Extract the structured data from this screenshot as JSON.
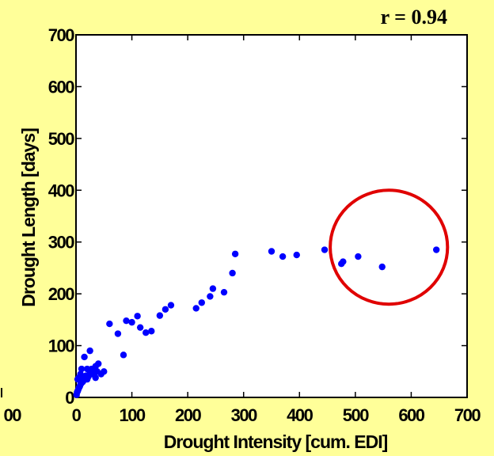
{
  "chart_data": {
    "type": "scatter",
    "title": "",
    "annotation": "r = 0.94",
    "xlabel": "Drought Intensity [cum. EDI]",
    "ylabel": "Drought Length [days]",
    "xlim": [
      0,
      700
    ],
    "ylim": [
      0,
      700
    ],
    "xticks": [
      "0",
      "100",
      "200",
      "300",
      "400",
      "500",
      "600",
      "700"
    ],
    "yticks": [
      "0",
      "100",
      "200",
      "300",
      "400",
      "500",
      "600",
      "700"
    ],
    "left_panel_partial_tick": "00",
    "grid": false,
    "colors": {
      "background": "#FFFF99",
      "plot_area": "#FFFFFF",
      "points": "#0000FF",
      "highlight_circle": "#E00000"
    },
    "highlight_circle": {
      "center": [
        560,
        290
      ],
      "radius_x": 105,
      "radius_y": 110
    },
    "series": [
      {
        "x": [
          1,
          2,
          3,
          4,
          5,
          6,
          7,
          8,
          10,
          12,
          14,
          3,
          5,
          8,
          15,
          18,
          20,
          22,
          25,
          28,
          30,
          32,
          35,
          38,
          40,
          30,
          20,
          10,
          35,
          45,
          50,
          25,
          15,
          60,
          75,
          85,
          90,
          100,
          110,
          115,
          125,
          135,
          150,
          160,
          170,
          215,
          225,
          240,
          245,
          265,
          280,
          285,
          350,
          370,
          395,
          445,
          475,
          478,
          505,
          548,
          645
        ],
        "y": [
          5,
          10,
          12,
          15,
          18,
          20,
          22,
          25,
          28,
          30,
          33,
          35,
          38,
          45,
          40,
          42,
          55,
          40,
          48,
          55,
          45,
          48,
          60,
          50,
          65,
          45,
          35,
          55,
          38,
          45,
          50,
          90,
          78,
          142,
          123,
          82,
          148,
          145,
          157,
          135,
          125,
          128,
          158,
          170,
          178,
          172,
          183,
          195,
          210,
          203,
          240,
          277,
          282,
          272,
          275,
          285,
          258,
          262,
          272,
          252,
          285
        ]
      }
    ]
  }
}
